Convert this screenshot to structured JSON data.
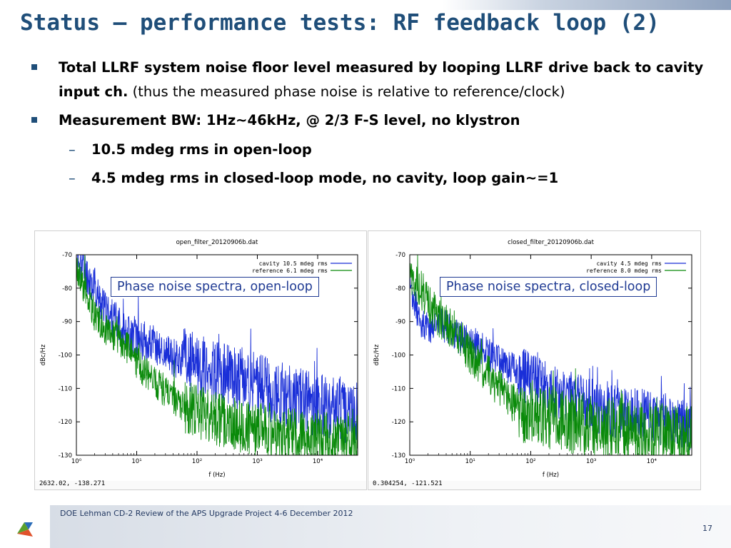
{
  "slide": {
    "title": "Status – performance tests: RF feedback loop (2)",
    "bullets": [
      {
        "bold": "Total LLRF system noise floor level measured by looping LLRF drive back to cavity input ch.",
        "normal": " (thus the measured phase noise is relative to reference/clock)"
      },
      {
        "bold": "Measurement BW: 1Hz~46kHz, @ 2/3 F-S level, no klystron"
      }
    ],
    "subbullets": [
      {
        "dash": "–",
        "bold": "10.5 mdeg rms in open-loop"
      },
      {
        "dash": "–",
        "bold": "4.5 mdeg rms in closed-loop mode, no cavity, loop gain~=1"
      }
    ],
    "footer": "DOE Lehman CD-2 Review of the APS Upgrade Project   4-6 December  2012",
    "page_number": "17",
    "colors": {
      "title": "#1f4e79",
      "cavity": "#1a2fd8",
      "reference": "#0a8a0a",
      "box": "#1f3a93"
    }
  },
  "chart_data": [
    {
      "type": "line",
      "title": "open_filter_20120906b.dat",
      "xlabel": "f (Hz)",
      "ylabel": "dBc/Hz",
      "xscale": "log",
      "xlim": [
        1,
        46000
      ],
      "ylim": [
        -130,
        -70
      ],
      "xticks": [
        "10⁰",
        "10¹",
        "10²",
        "10³",
        "10⁴"
      ],
      "yticks": [
        "-70",
        "-80",
        "-90",
        "-100",
        "-110",
        "-120",
        "-130"
      ],
      "annotation": "Phase noise spectra, open-loop",
      "status": "2632.02, -138.271",
      "series": [
        {
          "name": "cavity 10.5 mdeg rms",
          "color": "#1a2fd8",
          "x": [
            1,
            1.5,
            2,
            3,
            5,
            7,
            10,
            15,
            20,
            30,
            50,
            70,
            100,
            150,
            200,
            300,
            500,
            700,
            1000,
            1500,
            2000,
            3000,
            5000,
            7000,
            10000,
            15000,
            20000,
            30000,
            46000
          ],
          "y": [
            -70,
            -76,
            -80,
            -87,
            -91,
            -93,
            -95,
            -96,
            -97,
            -100,
            -101,
            -102,
            -103,
            -104,
            -105,
            -106,
            -107,
            -108,
            -109,
            -110,
            -111,
            -112,
            -113,
            -114,
            -115,
            -116,
            -116,
            -117,
            -118
          ],
          "spread": 6
        },
        {
          "name": "reference 6.1 mdeg rms",
          "color": "#0a8a0a",
          "x": [
            1,
            1.5,
            2,
            3,
            5,
            7,
            10,
            15,
            20,
            30,
            50,
            70,
            100,
            150,
            200,
            300,
            500,
            700,
            1000,
            1500,
            2000,
            3000,
            5000,
            7000,
            10000,
            15000,
            20000,
            30000,
            46000
          ],
          "y": [
            -74,
            -82,
            -88,
            -92,
            -95,
            -98,
            -102,
            -106,
            -108,
            -111,
            -114,
            -116,
            -117,
            -118,
            -119,
            -120,
            -121,
            -122,
            -122,
            -123,
            -123,
            -124,
            -124,
            -125,
            -125,
            -125,
            -126,
            -126,
            -126
          ],
          "spread": 5
        }
      ]
    },
    {
      "type": "line",
      "title": "closed_filter_20120906b.dat",
      "xlabel": "f (Hz)",
      "ylabel": "dBc/Hz",
      "xscale": "log",
      "xlim": [
        1,
        46000
      ],
      "ylim": [
        -130,
        -70
      ],
      "xticks": [
        "10⁰",
        "10¹",
        "10²",
        "10³",
        "10⁴"
      ],
      "yticks": [
        "-70",
        "-80",
        "-90",
        "-100",
        "-110",
        "-120",
        "-130"
      ],
      "annotation": "Phase noise spectra, closed-loop",
      "status": "0.304254, -121.521",
      "series": [
        {
          "name": "cavity 4.5 mdeg rms",
          "color": "#1a2fd8",
          "x": [
            1,
            1.5,
            2,
            3,
            5,
            7,
            10,
            15,
            20,
            30,
            50,
            70,
            100,
            150,
            200,
            300,
            500,
            700,
            1000,
            1500,
            2000,
            3000,
            5000,
            7000,
            10000,
            15000,
            20000,
            30000,
            46000
          ],
          "y": [
            -80,
            -90,
            -92,
            -90,
            -93,
            -95,
            -96,
            -98,
            -100,
            -102,
            -104,
            -106,
            -107,
            -109,
            -110,
            -112,
            -113,
            -114,
            -115,
            -116,
            -117,
            -117,
            -118,
            -118,
            -119,
            -119,
            -120,
            -120,
            -121
          ],
          "spread": 5
        },
        {
          "name": "reference 8.0 mdeg rms",
          "color": "#0a8a0a",
          "x": [
            1,
            1.5,
            2,
            3,
            5,
            7,
            10,
            15,
            20,
            30,
            50,
            70,
            100,
            150,
            200,
            300,
            500,
            700,
            1000,
            1500,
            2000,
            3000,
            5000,
            7000,
            10000,
            15000,
            20000,
            30000,
            46000
          ],
          "y": [
            -76,
            -80,
            -84,
            -89,
            -92,
            -95,
            -100,
            -104,
            -106,
            -110,
            -114,
            -117,
            -117,
            -118,
            -119,
            -119,
            -120,
            -121,
            -121,
            -122,
            -122,
            -122,
            -123,
            -123,
            -124,
            -124,
            -124,
            -125,
            -125
          ],
          "spread": 6
        }
      ]
    }
  ]
}
